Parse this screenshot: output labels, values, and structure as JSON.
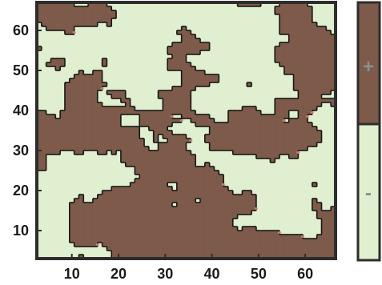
{
  "chart_data": {
    "type": "heatmap",
    "x_ticks": [
      10,
      20,
      30,
      40,
      50,
      60
    ],
    "y_ticks": [
      10,
      20,
      30,
      40,
      50,
      60
    ],
    "xlim": [
      2.5,
      66.5
    ],
    "ylim": [
      3,
      67
    ],
    "grid": false,
    "colors": {
      "plus": "#7d5a4a",
      "minus": "#e0efcf",
      "border": "#2d2d2d",
      "contour": "#161616",
      "speckle": "#d98a82",
      "legend_label": "#8a8f8f"
    },
    "legend": {
      "placement": "right",
      "entries": [
        {
          "label": "+",
          "state": "plus"
        },
        {
          "label": "-",
          "state": "minus"
        }
      ]
    },
    "state_fraction": {
      "plus": 0.5,
      "minus": 0.5
    },
    "description_values": "binary spatial domain map (+ / -) on a 64x64 lattice"
  }
}
